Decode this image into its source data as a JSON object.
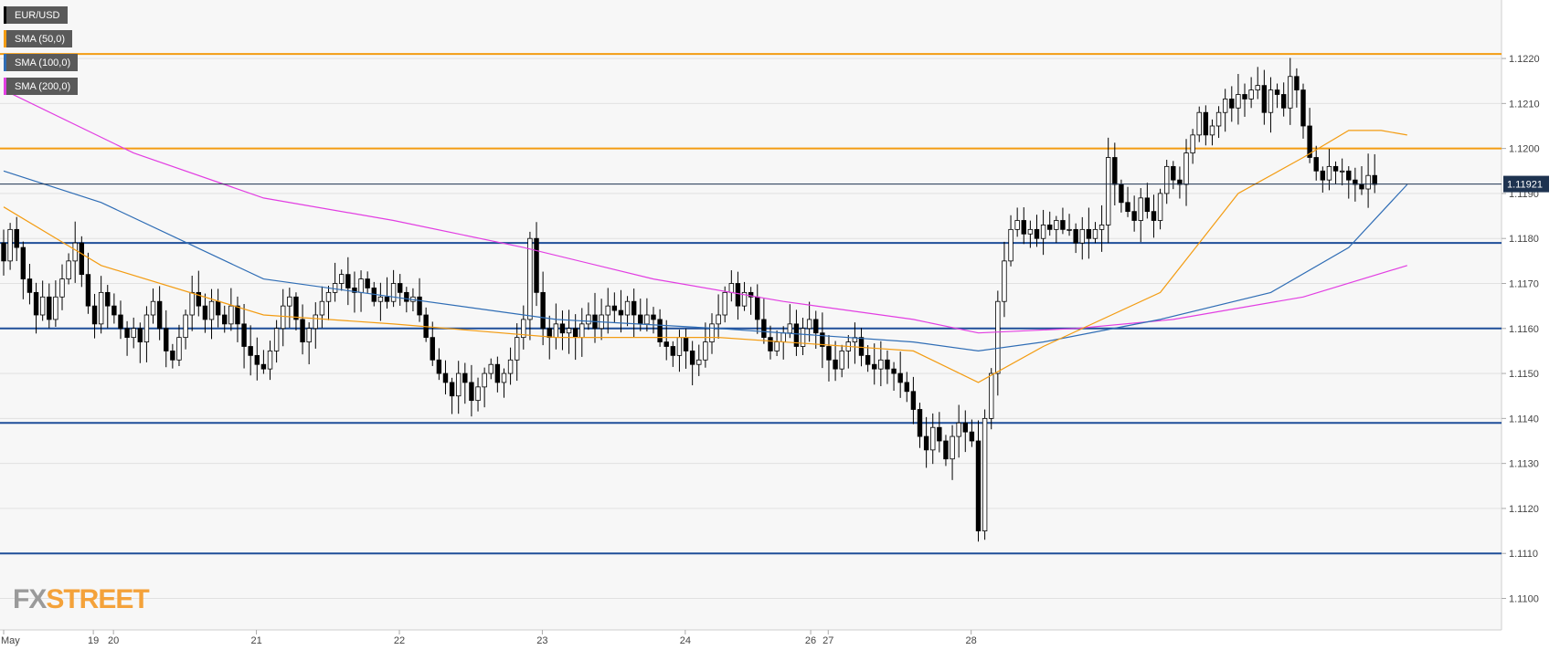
{
  "legend": [
    {
      "label": "EUR/USD",
      "color": "#000000"
    },
    {
      "label": "SMA (50,0)",
      "color": "#f39c12"
    },
    {
      "label": "SMA (100,0)",
      "color": "#2f6db5"
    },
    {
      "label": "SMA (200,0)",
      "color": "#e23ee2"
    }
  ],
  "watermark": {
    "fx": "FX",
    "street": "STREET"
  },
  "colors": {
    "background": "#f7f7f7",
    "grid": "#e1e1e1",
    "candle_up": "#ffffff",
    "candle_down": "#000000",
    "orange_level": "#f39c12",
    "blue_level": "#1f4e99",
    "sma50": "#f39c12",
    "sma100": "#2f6db5",
    "sma200": "#e23ee2",
    "price_tag": "#1e3350"
  },
  "chart_data": {
    "type": "candlestick",
    "symbol": "EUR/USD",
    "timeframe": "15m",
    "ylim": [
      1.1093,
      1.1233
    ],
    "y_ticks": [
      "1.1100",
      "1.1110",
      "1.1120",
      "1.1130",
      "1.1140",
      "1.1150",
      "1.1160",
      "1.1170",
      "1.1180",
      "1.1190",
      "1.1200",
      "1.1210",
      "1.1220"
    ],
    "x_ticks": [
      {
        "label": "May",
        "pos": 0
      },
      {
        "label": "19",
        "pos": 13.8
      },
      {
        "label": "20",
        "pos": 16.9
      },
      {
        "label": "21",
        "pos": 38.9
      },
      {
        "label": "22",
        "pos": 60.9
      },
      {
        "label": "23",
        "pos": 82.9
      },
      {
        "label": "24",
        "pos": 104.9
      },
      {
        "label": "26",
        "pos": 124.2
      },
      {
        "label": "27",
        "pos": 126.9
      },
      {
        "label": "28",
        "pos": 148.9
      }
    ],
    "current_price": "1.11921",
    "horizontal_levels": [
      {
        "value": 1.1221,
        "color": "orange"
      },
      {
        "value": 1.12,
        "color": "orange"
      },
      {
        "value": 1.1179,
        "color": "blue"
      },
      {
        "value": 1.116,
        "color": "blue"
      },
      {
        "value": 1.1139,
        "color": "blue"
      },
      {
        "value": 1.111,
        "color": "blue"
      }
    ],
    "close": [
      1.1175,
      1.1182,
      1.1178,
      1.1171,
      1.1168,
      1.1163,
      1.1167,
      1.1162,
      1.1167,
      1.1171,
      1.1175,
      1.1179,
      1.1172,
      1.1165,
      1.1161,
      1.1168,
      1.1165,
      1.1163,
      1.116,
      1.1158,
      1.116,
      1.1157,
      1.1163,
      1.1166,
      1.116,
      1.1155,
      1.1153,
      1.1158,
      1.1163,
      1.1168,
      1.1165,
      1.1162,
      1.1166,
      1.1163,
      1.1161,
      1.1165,
      1.1161,
      1.1156,
      1.1154,
      1.1152,
      1.1151,
      1.1155,
      1.116,
      1.1165,
      1.1167,
      1.1162,
      1.1157,
      1.116,
      1.1163,
      1.1166,
      1.1168,
      1.117,
      1.1172,
      1.1169,
      1.1168,
      1.1171,
      1.1169,
      1.1166,
      1.1167,
      1.1166,
      1.117,
      1.1168,
      1.1166,
      1.1167,
      1.1163,
      1.1158,
      1.1153,
      1.115,
      1.1148,
      1.1145,
      1.115,
      1.1148,
      1.1144,
      1.1147,
      1.115,
      1.1152,
      1.1148,
      1.115,
      1.1153,
      1.1158,
      1.1162,
      1.118,
      1.1168,
      1.116,
      1.1158,
      1.1161,
      1.1159,
      1.116,
      1.1158,
      1.1161,
      1.1163,
      1.116,
      1.1163,
      1.1165,
      1.1164,
      1.1163,
      1.1166,
      1.1163,
      1.1161,
      1.1163,
      1.1162,
      1.1157,
      1.1156,
      1.1154,
      1.1158,
      1.1155,
      1.1152,
      1.1153,
      1.1157,
      1.1161,
      1.1163,
      1.1168,
      1.117,
      1.1165,
      1.1168,
      1.1167,
      1.1162,
      1.1158,
      1.1155,
      1.1157,
      1.1159,
      1.1161,
      1.1156,
      1.116,
      1.1162,
      1.1159,
      1.1156,
      1.1153,
      1.1151,
      1.1155,
      1.1157,
      1.1158,
      1.1154,
      1.1152,
      1.1151,
      1.1153,
      1.1151,
      1.115,
      1.1148,
      1.1146,
      1.1142,
      1.1136,
      1.1133,
      1.1138,
      1.1135,
      1.1131,
      1.1136,
      1.1139,
      1.1137,
      1.1135,
      1.1115,
      1.114,
      1.115,
      1.1166,
      1.1175,
      1.1182,
      1.1184,
      1.1181,
      1.1182,
      1.118,
      1.1183,
      1.1182,
      1.1184,
      1.1182,
      1.1182,
      1.1179,
      1.1182,
      1.118,
      1.1182,
      1.1183,
      1.1198,
      1.1192,
      1.1188,
      1.1186,
      1.1184,
      1.1189,
      1.1186,
      1.1184,
      1.119,
      1.1196,
      1.1193,
      1.1192,
      1.1199,
      1.1203,
      1.1208,
      1.1203,
      1.1205,
      1.1208,
      1.1211,
      1.1209,
      1.1212,
      1.1211,
      1.1213,
      1.1214,
      1.1208,
      1.1213,
      1.1212,
      1.1209,
      1.1216,
      1.1213,
      1.1205,
      1.1198,
      1.1195,
      1.1193,
      1.1196,
      1.1195,
      1.1195,
      1.1193,
      1.1192,
      1.1191,
      1.1194,
      1.1192
    ],
    "sma_50": [
      [
        0,
        1.1187
      ],
      [
        15,
        1.1174
      ],
      [
        40,
        1.1163
      ],
      [
        60,
        1.1161
      ],
      [
        85,
        1.1158
      ],
      [
        110,
        1.1158
      ],
      [
        140,
        1.1155
      ],
      [
        150,
        1.1148
      ],
      [
        160,
        1.1156
      ],
      [
        178,
        1.1168
      ],
      [
        190,
        1.119
      ],
      [
        200,
        1.1198
      ],
      [
        207,
        1.1204
      ],
      [
        212,
        1.1204
      ],
      [
        216,
        1.1203
      ]
    ],
    "sma_100": [
      [
        0,
        1.1195
      ],
      [
        15,
        1.1188
      ],
      [
        40,
        1.1171
      ],
      [
        60,
        1.1167
      ],
      [
        85,
        1.1162
      ],
      [
        110,
        1.116
      ],
      [
        140,
        1.1157
      ],
      [
        150,
        1.1155
      ],
      [
        160,
        1.1157
      ],
      [
        178,
        1.1162
      ],
      [
        195,
        1.1168
      ],
      [
        207,
        1.1178
      ],
      [
        216,
        1.1192
      ]
    ],
    "sma_200": [
      [
        0,
        1.1213
      ],
      [
        20,
        1.1199
      ],
      [
        40,
        1.1189
      ],
      [
        60,
        1.1184
      ],
      [
        80,
        1.1178
      ],
      [
        100,
        1.1171
      ],
      [
        120,
        1.1166
      ],
      [
        140,
        1.1162
      ],
      [
        150,
        1.1159
      ],
      [
        165,
        1.116
      ],
      [
        180,
        1.1162
      ],
      [
        200,
        1.1167
      ],
      [
        216,
        1.1174
      ]
    ]
  }
}
